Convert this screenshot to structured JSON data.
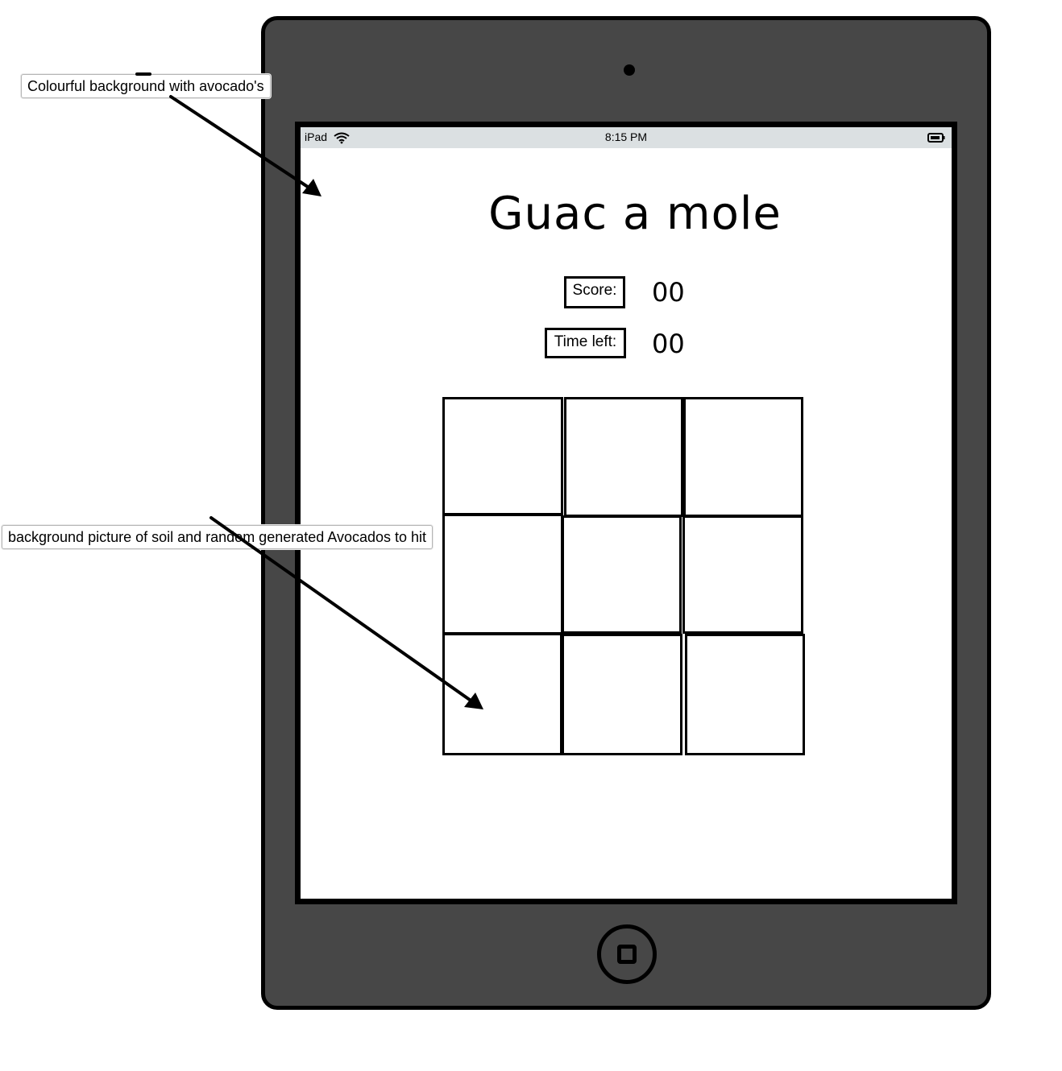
{
  "device": {
    "name": "iPad",
    "time": "8:15 PM"
  },
  "game": {
    "title": "Guac a mole",
    "score_label": "Score:",
    "score_value": "00",
    "time_label": "Time left:",
    "time_value": "00",
    "holes": [
      {
        "id": "hole-1"
      },
      {
        "id": "hole-2"
      },
      {
        "id": "hole-3"
      },
      {
        "id": "hole-4"
      },
      {
        "id": "hole-5"
      },
      {
        "id": "hole-6"
      },
      {
        "id": "hole-7"
      },
      {
        "id": "hole-8"
      },
      {
        "id": "hole-9"
      }
    ]
  },
  "annotations": {
    "background_note": "Colourful background with avocado's",
    "grid_note": "background picture of soil and random generated Avocados to hit"
  },
  "colors": {
    "frame": "#474747",
    "status_bar": "#dbe0e2",
    "outline": "#000000",
    "screen": "#ffffff"
  },
  "icons": [
    "wifi-icon",
    "battery-icon",
    "home-button-icon",
    "camera-icon",
    "arrow-icon"
  ]
}
